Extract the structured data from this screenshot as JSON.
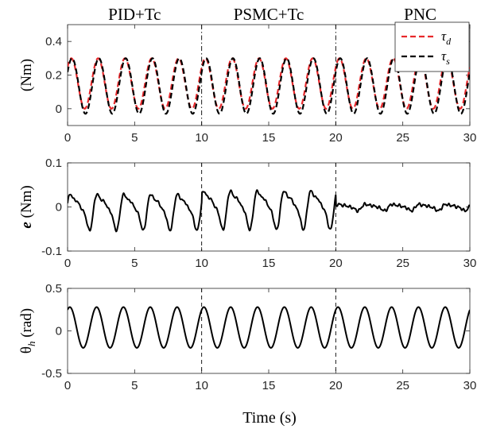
{
  "chart_data": {
    "section_labels": [
      "PID+Tc",
      "PSMC+Tc",
      "PNC"
    ],
    "x_ticks": [
      0,
      5,
      10,
      15,
      20,
      25,
      30
    ],
    "x_tick_labels": [
      "0",
      "5",
      "10",
      "15",
      "20",
      "25",
      "30"
    ],
    "xlabel": "Time (s)",
    "xlim": [
      0,
      30
    ],
    "section_boundaries": [
      10,
      20
    ],
    "panels": [
      {
        "type": "line",
        "ylabel": "(Nm)",
        "ylim": [
          -0.1,
          0.5
        ],
        "y_ticks": [
          0,
          0.2,
          0.4
        ],
        "y_tick_labels": [
          "0",
          "0.2",
          "0.4"
        ],
        "boundary_style": "dashdot",
        "legend": {
          "placement": "top-right",
          "entries": [
            {
              "label": "τ",
              "sub": "d",
              "color": "#e8282b",
              "dash": "dashed"
            },
            {
              "label": "τ",
              "sub": "s",
              "color": "#000000",
              "dash": "dashed"
            }
          ]
        },
        "series": [
          {
            "name": "τ_d",
            "color": "#e8282b",
            "dash": "dashed",
            "function": "sine",
            "offset": 0.15,
            "amplitude": 0.15,
            "period": 2.0,
            "phase_deg": 40,
            "x_range": [
              0,
              30
            ]
          },
          {
            "name": "τ_s",
            "color": "#000000",
            "dash": "dashed",
            "function": "sine",
            "offset": 0.135,
            "amplitude": 0.165,
            "period": 2.0,
            "phase_deg": 30,
            "x_range": [
              0,
              30
            ]
          }
        ]
      },
      {
        "type": "line",
        "ylabel": "e (Nm)",
        "ylabel_italic_part": "e",
        "ylim": [
          -0.1,
          0.1
        ],
        "y_ticks": [
          -0.1,
          0,
          0.1
        ],
        "y_tick_labels": [
          "-0.1",
          "0",
          "0.1"
        ],
        "boundary_style": "dashed",
        "series": [
          {
            "name": "e",
            "color": "#000000",
            "dash": "solid",
            "segments": [
              {
                "x_range": [
                  0,
                  10
                ],
                "offset": -0.005,
                "amplitude": 0.045,
                "period": 2.0,
                "phase_deg": 0
              },
              {
                "x_range": [
                  10,
                  20
                ],
                "offset": 0.0,
                "amplitude": 0.048,
                "period": 2.0,
                "phase_deg": 10
              },
              {
                "x_range": [
                  20,
                  30
                ],
                "offset": 0.0,
                "amplitude": 0.008,
                "period": 2.0,
                "phase_deg": 0
              }
            ]
          }
        ]
      },
      {
        "type": "line",
        "ylabel": "θh (rad)",
        "ylim": [
          -0.5,
          0.5
        ],
        "y_ticks": [
          -0.5,
          0,
          0.5
        ],
        "y_tick_labels": [
          "-0.5",
          "0",
          "0.5"
        ],
        "boundary_style": "dashed",
        "series": [
          {
            "name": "θ_h",
            "color": "#000000",
            "dash": "solid",
            "function": "sine",
            "offset": 0.04,
            "amplitude": 0.24,
            "period": 2.0,
            "phase_deg": 60,
            "x_range": [
              0,
              30
            ]
          }
        ]
      }
    ]
  }
}
